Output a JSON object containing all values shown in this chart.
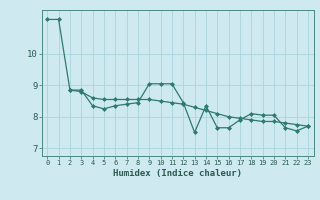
{
  "xlabel": "Humidex (Indice chaleur)",
  "background_color": "#ceeaf0",
  "grid_color": "#aad4dc",
  "line_color": "#2d7a6e",
  "spine_color": "#4a8a80",
  "xlim": [
    -0.5,
    23.5
  ],
  "ylim": [
    6.75,
    11.4
  ],
  "yticks": [
    7,
    8,
    9,
    10
  ],
  "xticks": [
    0,
    1,
    2,
    3,
    4,
    5,
    6,
    7,
    8,
    9,
    10,
    11,
    12,
    13,
    14,
    15,
    16,
    17,
    18,
    19,
    20,
    21,
    22,
    23
  ],
  "series1_x": [
    0,
    1,
    2,
    3,
    4,
    5,
    6,
    7,
    8,
    9,
    10,
    11,
    12,
    13,
    14,
    15,
    16,
    17,
    18,
    19,
    20,
    21,
    22,
    23
  ],
  "series1_y": [
    11.1,
    11.1,
    8.85,
    8.85,
    8.35,
    8.25,
    8.35,
    8.4,
    8.45,
    9.05,
    9.05,
    9.05,
    8.45,
    7.5,
    8.35,
    7.65,
    7.65,
    7.9,
    8.1,
    8.05,
    8.05,
    7.65,
    7.55,
    7.7
  ],
  "series2_x": [
    2,
    3,
    4,
    5,
    6,
    7,
    8,
    9,
    10,
    11,
    12,
    13,
    14,
    15,
    16,
    17,
    18,
    19,
    20,
    21,
    22,
    23
  ],
  "series2_y": [
    8.85,
    8.8,
    8.6,
    8.55,
    8.55,
    8.55,
    8.55,
    8.55,
    8.5,
    8.45,
    8.4,
    8.3,
    8.2,
    8.1,
    8.0,
    7.95,
    7.9,
    7.85,
    7.85,
    7.8,
    7.75,
    7.7
  ]
}
